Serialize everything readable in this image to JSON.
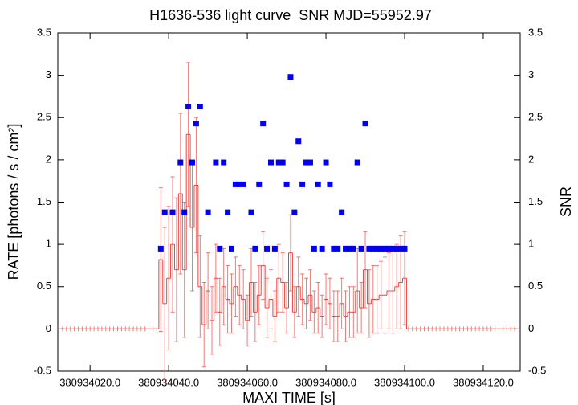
{
  "chart_data": {
    "type": "lightcurve",
    "title": "H1636-536 light curve  SNR MJD=55952.97",
    "xlabel": "MAXI TIME [s]",
    "ylabel": "RATE [photons / s / cm²]",
    "y2label": "SNR",
    "xlim": [
      380934011.8,
      380934129.4
    ],
    "xticks": [
      {
        "value": 380934020,
        "label": "380934020.0"
      },
      {
        "value": 380934040,
        "label": "380934040.0"
      },
      {
        "value": 380934060,
        "label": "380934060.0"
      },
      {
        "value": 380934080,
        "label": "380934080.0"
      },
      {
        "value": 380934100,
        "label": "380934100.0"
      },
      {
        "value": 380934120,
        "label": "380934120.0"
      }
    ],
    "ylim": [
      -0.5,
      3.5
    ],
    "yticks": [
      -0.5,
      0,
      0.5,
      1,
      1.5,
      2,
      2.5,
      3,
      3.5
    ],
    "y2lim": [
      -0.5,
      3.5
    ],
    "y2ticks": [
      -0.5,
      0,
      0.5,
      1,
      1.5,
      2,
      2.5,
      3,
      3.5
    ],
    "x": [
      380934013,
      380934014,
      380934015,
      380934016,
      380934017,
      380934018,
      380934019,
      380934020,
      380934021,
      380934022,
      380934023,
      380934024,
      380934025,
      380934026,
      380934027,
      380934028,
      380934029,
      380934030,
      380934031,
      380934032,
      380934033,
      380934034,
      380934035,
      380934036,
      380934037,
      380934038,
      380934039,
      380934040,
      380934041,
      380934042,
      380934043,
      380934044,
      380934045,
      380934046,
      380934047,
      380934048,
      380934049,
      380934050,
      380934051,
      380934052,
      380934053,
      380934054,
      380934055,
      380934056,
      380934057,
      380934058,
      380934059,
      380934060,
      380934061,
      380934062,
      380934063,
      380934064,
      380934065,
      380934066,
      380934067,
      380934068,
      380934069,
      380934070,
      380934071,
      380934072,
      380934073,
      380934074,
      380934075,
      380934076,
      380934077,
      380934078,
      380934079,
      380934080,
      380934081,
      380934082,
      380934083,
      380934084,
      380934085,
      380934086,
      380934087,
      380934088,
      380934089,
      380934090,
      380934091,
      380934092,
      380934093,
      380934094,
      380934095,
      380934096,
      380934097,
      380934098,
      380934099,
      380934100,
      380934101,
      380934102,
      380934103,
      380934104,
      380934105,
      380934106,
      380934107,
      380934108,
      380934109,
      380934110,
      380934111,
      380934112,
      380934113,
      380934114,
      380934115,
      380934116,
      380934117,
      380934118,
      380934119,
      380934120,
      380934121,
      380934122,
      380934123,
      380934124,
      380934125,
      380934126,
      380934127,
      380934128
    ],
    "series": [
      {
        "color": "#e8443e",
        "values": [
          0,
          0,
          0,
          0,
          0,
          0,
          0,
          0,
          0,
          0,
          0,
          0,
          0,
          0,
          0,
          0,
          0,
          0,
          0,
          0,
          0,
          0,
          0,
          0,
          0,
          0.82,
          0.3,
          0.6,
          1.0,
          0.7,
          1.6,
          0.7,
          2.3,
          1.2,
          1.7,
          0.5,
          0.05,
          0.45,
          0.1,
          0.6,
          0.2,
          0.5,
          0.35,
          0.3,
          0.5,
          0.4,
          0.35,
          0.1,
          0.55,
          0.2,
          0.4,
          0.75,
          0.25,
          0.35,
          0.15,
          0.6,
          0.55,
          0.25,
          0.9,
          0.2,
          0.5,
          0.35,
          0.3,
          0.4,
          0.2,
          0.25,
          0.15,
          0.35,
          0.3,
          0.15,
          0.15,
          0.3,
          0.15,
          0.2,
          0.2,
          0.45,
          0.25,
          0.7,
          0.3,
          0.35,
          0.35,
          0.4,
          0.4,
          0.45,
          0.45,
          0.5,
          0.55,
          0.6,
          0,
          0,
          0,
          0,
          0,
          0,
          0,
          0,
          0,
          0,
          0,
          0,
          0,
          0,
          0,
          0,
          0,
          0,
          0,
          0,
          0,
          0,
          0,
          0,
          0,
          0,
          0,
          0
        ],
        "errors": [
          0,
          0,
          0,
          0,
          0,
          0,
          0,
          0,
          0,
          0,
          0,
          0,
          0,
          0,
          0,
          0,
          0,
          0,
          0,
          0,
          0,
          0,
          0,
          0,
          0,
          0.85,
          0.9,
          0.85,
          0.8,
          0.85,
          0.95,
          0.8,
          0.85,
          0.75,
          0.8,
          0.6,
          0.5,
          0.45,
          0.4,
          0.4,
          0.4,
          0.45,
          0.4,
          0.35,
          0.35,
          0.35,
          0.35,
          0.3,
          0.4,
          0.35,
          0.35,
          0.4,
          0.35,
          0.35,
          0.3,
          0.4,
          0.35,
          0.3,
          0.45,
          0.3,
          0.35,
          0.3,
          0.3,
          0.3,
          0.25,
          0.3,
          0.25,
          0.3,
          0.3,
          0.3,
          0.3,
          0.3,
          0.3,
          0.3,
          0.3,
          0.5,
          0.3,
          0.45,
          0.4,
          0.4,
          0.4,
          0.4,
          0.45,
          0.45,
          0.5,
          0.5,
          0.55,
          0.55,
          0,
          0,
          0,
          0,
          0,
          0,
          0,
          0,
          0,
          0,
          0,
          0,
          0,
          0,
          0,
          0,
          0,
          0,
          0,
          0,
          0,
          0,
          0,
          0,
          0,
          0,
          0,
          0
        ]
      },
      {
        "color": "#0000ee",
        "axis": "y2",
        "values": [
          null,
          null,
          null,
          null,
          null,
          null,
          null,
          null,
          null,
          null,
          null,
          null,
          null,
          null,
          null,
          null,
          null,
          null,
          null,
          null,
          null,
          null,
          null,
          null,
          null,
          0.95,
          1.38,
          null,
          1.38,
          null,
          1.97,
          1.38,
          2.63,
          1.97,
          2.43,
          2.63,
          null,
          1.38,
          null,
          1.97,
          0.95,
          1.97,
          1.38,
          0.95,
          1.71,
          1.71,
          1.71,
          null,
          1.38,
          0.95,
          1.71,
          2.43,
          0.95,
          1.97,
          0.95,
          1.97,
          1.97,
          1.71,
          2.98,
          1.38,
          2.22,
          1.71,
          1.97,
          1.97,
          0.95,
          1.71,
          0.95,
          1.97,
          1.71,
          0.95,
          0.95,
          1.38,
          0.95,
          0.95,
          0.95,
          1.97,
          0.95,
          2.43,
          0.95,
          0.95,
          0.95,
          0.95,
          0.95,
          0.95,
          0.95,
          0.95,
          0.95,
          0.95,
          null,
          null,
          null,
          null,
          null,
          null,
          null,
          null,
          null,
          null,
          null,
          null,
          null,
          null,
          null,
          null,
          null,
          null,
          null,
          null,
          null,
          null,
          null,
          null,
          null,
          null,
          null,
          null
        ]
      }
    ]
  }
}
